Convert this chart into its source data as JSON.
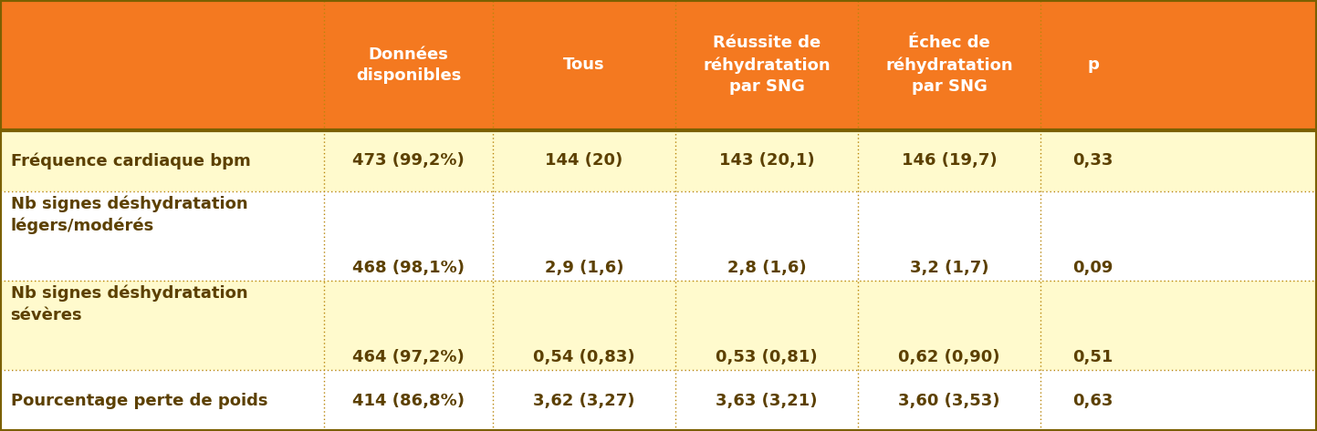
{
  "header_bg": "#F47920",
  "header_text_color": "#FFFFFF",
  "row_bg_yellow": "#FFFACD",
  "row_bg_white": "#FFFFFF",
  "border_color_outer": "#7B6000",
  "border_color_inner": "#B8860B",
  "text_color_data": "#5C4000",
  "col_headers": [
    "Données\ndisponibles",
    "Tous",
    "Réussite de\nréhydratation\npar SNG",
    "Échec de\nréhydratation\npar SNG",
    "p"
  ],
  "row_labels": [
    "Fréquence cardiaque bpm",
    "Nb signes déshydratation\nlégers/modérés",
    "Nb signes déshydratation\nsévères",
    "Pourcentage perte de poids"
  ],
  "row_data": [
    [
      "473 (99,2%)",
      "144 (20)",
      "143 (20,1)",
      "146 (19,7)",
      "0,33"
    ],
    [
      "468 (98,1%)",
      "2,9 (1,6)",
      "2,8 (1,6)",
      "3,2 (1,7)",
      "0,09"
    ],
    [
      "464 (97,2%)",
      "0,54 (0,83)",
      "0,53 (0,81)",
      "0,62 (0,90)",
      "0,51"
    ],
    [
      "414 (86,8%)",
      "3,62 (3,27)",
      "3,63 (3,21)",
      "3,60 (3,53)",
      "0,63"
    ]
  ],
  "row_colors": [
    "#FFFACD",
    "#FFFFFF",
    "#FFFACD",
    "#FFFFFF"
  ],
  "row_multiline": [
    false,
    true,
    true,
    false
  ],
  "figsize": [
    14.43,
    4.73
  ],
  "dpi": 100
}
